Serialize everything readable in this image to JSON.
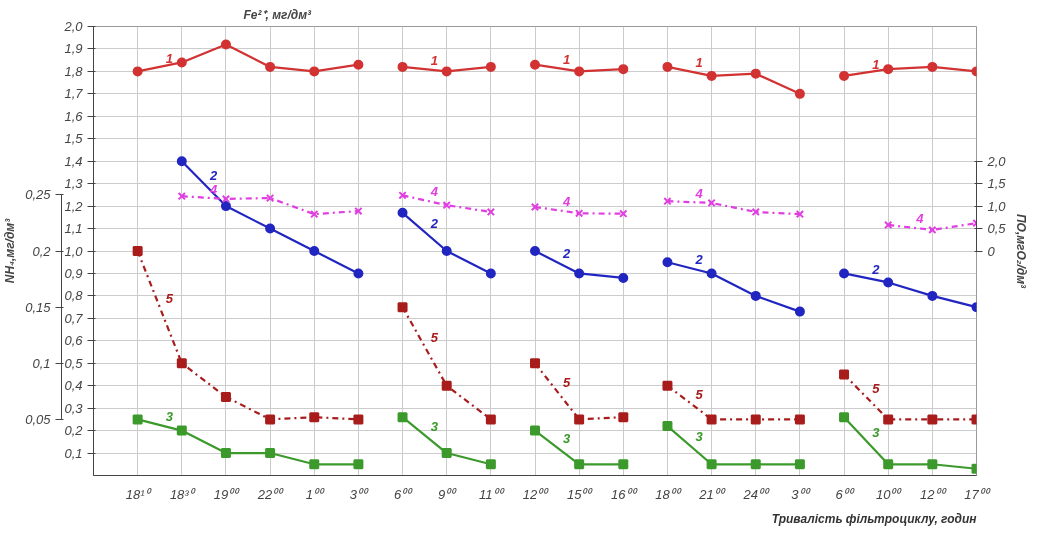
{
  "chart_data": {
    "type": "line",
    "ylabel": "Fe²⁺, мг/дм³",
    "y3label": "NH₄,мг/дм³",
    "y2label": "ПО,мгО₂/дм³",
    "xlabel": "Тривалість фільтроциклу, годин",
    "categories": [
      "18¹⁰",
      "18³⁰",
      "19⁰⁰",
      "22⁰⁰",
      "1⁰⁰",
      "3⁰⁰",
      "6⁰⁰",
      "9⁰⁰",
      "11⁰⁰",
      "12⁰⁰",
      "15⁰⁰",
      "16⁰⁰",
      "18⁰⁰",
      "21⁰⁰",
      "24⁰⁰",
      "3⁰⁰",
      "6⁰⁰",
      "10⁰⁰",
      "12⁰⁰",
      "17⁰⁰"
    ],
    "ylim": [
      0,
      2.0
    ],
    "yticks": [
      {
        "value": 0.1,
        "label": "0,1"
      },
      {
        "value": 0.2,
        "label": "0,2"
      },
      {
        "value": 0.3,
        "label": "0,3"
      },
      {
        "value": 0.4,
        "label": "0,4"
      },
      {
        "value": 0.5,
        "label": "0,5"
      },
      {
        "value": 0.6,
        "label": "0,6"
      },
      {
        "value": 0.7,
        "label": "0,7"
      },
      {
        "value": 0.8,
        "label": "0,8"
      },
      {
        "value": 0.9,
        "label": "0,9"
      },
      {
        "value": 1.0,
        "label": "1,0"
      },
      {
        "value": 1.1,
        "label": "1,1"
      },
      {
        "value": 1.2,
        "label": "1,2"
      },
      {
        "value": 1.3,
        "label": "1,3"
      },
      {
        "value": 1.4,
        "label": "1,4"
      },
      {
        "value": 1.5,
        "label": "1,5"
      },
      {
        "value": 1.6,
        "label": "1,6"
      },
      {
        "value": 1.7,
        "label": "1,7"
      },
      {
        "value": 1.8,
        "label": "1,8"
      },
      {
        "value": 1.9,
        "label": "1,9"
      },
      {
        "value": 2.0,
        "label": "2,0"
      }
    ],
    "y2lim": [
      -5,
      5
    ],
    "y2ticks": [
      {
        "value": 0,
        "label": "0"
      },
      {
        "value": 0.5,
        "label": "0,5"
      },
      {
        "value": 1.0,
        "label": "1,0"
      },
      {
        "value": 1.5,
        "label": "1,5"
      },
      {
        "value": 2.0,
        "label": "2,0"
      }
    ],
    "y3lim": [
      0,
      0.4
    ],
    "y3ticks": [
      {
        "value": 0.05,
        "label": "0,05"
      },
      {
        "value": 0.1,
        "label": "0,1"
      },
      {
        "value": 0.15,
        "label": "0,15"
      },
      {
        "value": 0.2,
        "label": "0,2"
      },
      {
        "value": 0.25,
        "label": "0,25"
      }
    ],
    "grid": true,
    "series": [
      {
        "name": "1",
        "color": "#d23232",
        "marker": "circle",
        "line_style": "solid",
        "values": [
          1.8,
          1.84,
          1.92,
          1.82,
          1.8,
          1.83,
          null,
          null,
          null,
          null,
          null,
          null,
          null,
          null,
          null,
          null,
          null,
          null,
          null,
          null
        ]
      },
      {
        "name": "1",
        "color": "#d23232",
        "marker": "circle",
        "line_style": "solid",
        "values": [
          null,
          null,
          null,
          null,
          null,
          null,
          1.82,
          1.8,
          1.82,
          null,
          null,
          null,
          null,
          null,
          null,
          null,
          null,
          null,
          null,
          null
        ]
      },
      {
        "name": "1",
        "color": "#d23232",
        "marker": "circle",
        "line_style": "solid",
        "values": [
          null,
          null,
          null,
          null,
          null,
          null,
          null,
          null,
          null,
          1.83,
          1.8,
          1.81,
          null,
          null,
          null,
          null,
          null,
          null,
          null,
          null
        ]
      },
      {
        "name": "1",
        "color": "#d23232",
        "marker": "circle",
        "line_style": "solid",
        "values": [
          null,
          null,
          null,
          null,
          null,
          null,
          null,
          null,
          null,
          null,
          null,
          null,
          1.82,
          1.78,
          1.79,
          1.7,
          null,
          null,
          null,
          null
        ]
      },
      {
        "name": "1",
        "color": "#d23232",
        "marker": "circle",
        "line_style": "solid",
        "values": [
          null,
          null,
          null,
          null,
          null,
          null,
          null,
          null,
          null,
          null,
          null,
          null,
          null,
          null,
          null,
          null,
          1.78,
          1.81,
          1.82,
          1.8
        ]
      },
      {
        "name": "2",
        "color": "#2226c0",
        "marker": "circle",
        "line_style": "solid",
        "values": [
          null,
          1.4,
          1.2,
          1.1,
          1.0,
          0.9,
          null,
          null,
          null,
          null,
          null,
          null,
          null,
          null,
          null,
          null,
          null,
          null,
          null,
          null
        ]
      },
      {
        "name": "2",
        "color": "#2226c0",
        "marker": "circle",
        "line_style": "solid",
        "values": [
          null,
          null,
          null,
          null,
          null,
          null,
          1.17,
          1.0,
          0.9,
          null,
          null,
          null,
          null,
          null,
          null,
          null,
          null,
          null,
          null,
          null
        ]
      },
      {
        "name": "2",
        "color": "#2226c0",
        "marker": "circle",
        "line_style": "solid",
        "values": [
          null,
          null,
          null,
          null,
          null,
          null,
          null,
          null,
          null,
          1.0,
          0.9,
          0.88,
          null,
          null,
          null,
          null,
          null,
          null,
          null,
          null
        ]
      },
      {
        "name": "2",
        "color": "#2226c0",
        "marker": "circle",
        "line_style": "solid",
        "values": [
          null,
          null,
          null,
          null,
          null,
          null,
          null,
          null,
          null,
          null,
          null,
          null,
          0.95,
          0.9,
          0.8,
          0.73,
          null,
          null,
          null,
          null
        ]
      },
      {
        "name": "2",
        "color": "#2226c0",
        "marker": "circle",
        "line_style": "solid",
        "values": [
          null,
          null,
          null,
          null,
          null,
          null,
          null,
          null,
          null,
          null,
          null,
          null,
          null,
          null,
          null,
          null,
          0.9,
          0.86,
          0.8,
          0.75
        ]
      },
      {
        "name": "3",
        "color": "#3c9a2c",
        "marker": "square",
        "line_style": "solid",
        "axis": "y3",
        "values": [
          0.05,
          0.04,
          0.02,
          0.02,
          0.01,
          0.01,
          null,
          null,
          null,
          null,
          null,
          null,
          null,
          null,
          null,
          null,
          null,
          null,
          null,
          null
        ]
      },
      {
        "name": "3",
        "color": "#3c9a2c",
        "marker": "square",
        "line_style": "solid",
        "axis": "y3",
        "values": [
          null,
          null,
          null,
          null,
          null,
          null,
          0.052,
          0.02,
          0.01,
          null,
          null,
          null,
          null,
          null,
          null,
          null,
          null,
          null,
          null,
          null
        ]
      },
      {
        "name": "3",
        "color": "#3c9a2c",
        "marker": "square",
        "line_style": "solid",
        "axis": "y3",
        "values": [
          null,
          null,
          null,
          null,
          null,
          null,
          null,
          null,
          null,
          0.04,
          0.01,
          0.01,
          null,
          null,
          null,
          null,
          null,
          null,
          null,
          null
        ]
      },
      {
        "name": "3",
        "color": "#3c9a2c",
        "marker": "square",
        "line_style": "solid",
        "axis": "y3",
        "values": [
          null,
          null,
          null,
          null,
          null,
          null,
          null,
          null,
          null,
          null,
          null,
          null,
          0.044,
          0.01,
          0.01,
          0.01,
          null,
          null,
          null,
          null
        ]
      },
      {
        "name": "3",
        "color": "#3c9a2c",
        "marker": "square",
        "line_style": "solid",
        "axis": "y3",
        "values": [
          null,
          null,
          null,
          null,
          null,
          null,
          null,
          null,
          null,
          null,
          null,
          null,
          null,
          null,
          null,
          null,
          0.052,
          0.01,
          0.01,
          0.006
        ]
      },
      {
        "name": "4",
        "color": "#e03ee0",
        "marker": "cross",
        "line_style": "dashdot",
        "axis": "y2",
        "values": [
          null,
          1.22,
          1.16,
          1.18,
          0.82,
          0.89,
          null,
          null,
          null,
          null,
          null,
          null,
          null,
          null,
          null,
          null,
          null,
          null,
          null,
          null
        ]
      },
      {
        "name": "4",
        "color": "#e03ee0",
        "marker": "cross",
        "line_style": "dashdot",
        "axis": "y2",
        "values": [
          null,
          null,
          null,
          null,
          null,
          null,
          1.24,
          1.02,
          0.87,
          null,
          null,
          null,
          null,
          null,
          null,
          null,
          null,
          null,
          null,
          null
        ]
      },
      {
        "name": "4",
        "color": "#e03ee0",
        "marker": "cross",
        "line_style": "dashdot",
        "axis": "y2",
        "values": [
          null,
          null,
          null,
          null,
          null,
          null,
          null,
          null,
          null,
          0.98,
          0.84,
          0.83,
          null,
          null,
          null,
          null,
          null,
          null,
          null,
          null
        ]
      },
      {
        "name": "4",
        "color": "#e03ee0",
        "marker": "cross",
        "line_style": "dashdot",
        "axis": "y2",
        "values": [
          null,
          null,
          null,
          null,
          null,
          null,
          null,
          null,
          null,
          null,
          null,
          null,
          1.11,
          1.07,
          0.87,
          0.82,
          null,
          null,
          null,
          null
        ]
      },
      {
        "name": "4",
        "color": "#e03ee0",
        "marker": "cross",
        "line_style": "dashdot",
        "axis": "y2",
        "values": [
          null,
          null,
          null,
          null,
          null,
          null,
          null,
          null,
          null,
          null,
          null,
          null,
          null,
          null,
          null,
          null,
          null,
          0.58,
          0.47,
          0.62
        ]
      },
      {
        "name": "5",
        "color": "#a81c1c",
        "marker": "square",
        "line_style": "dashdot",
        "axis": "y3",
        "values": [
          0.2,
          0.1,
          0.07,
          0.05,
          0.052,
          0.05,
          null,
          null,
          null,
          null,
          null,
          null,
          null,
          null,
          null,
          null,
          null,
          null,
          null,
          null
        ]
      },
      {
        "name": "5",
        "color": "#a81c1c",
        "marker": "square",
        "line_style": "dashdot",
        "axis": "y3",
        "values": [
          null,
          null,
          null,
          null,
          null,
          null,
          0.15,
          0.08,
          0.05,
          null,
          null,
          null,
          null,
          null,
          null,
          null,
          null,
          null,
          null,
          null
        ]
      },
      {
        "name": "5",
        "color": "#a81c1c",
        "marker": "square",
        "line_style": "dashdot",
        "axis": "y3",
        "values": [
          null,
          null,
          null,
          null,
          null,
          null,
          null,
          null,
          null,
          0.1,
          0.05,
          0.052,
          null,
          null,
          null,
          null,
          null,
          null,
          null,
          null
        ]
      },
      {
        "name": "5",
        "color": "#a81c1c",
        "marker": "square",
        "line_style": "dashdot",
        "axis": "y3",
        "values": [
          null,
          null,
          null,
          null,
          null,
          null,
          null,
          null,
          null,
          null,
          null,
          null,
          0.08,
          0.05,
          0.05,
          0.05,
          null,
          null,
          null,
          null
        ]
      },
      {
        "name": "5",
        "color": "#a81c1c",
        "marker": "square",
        "line_style": "dashdot",
        "axis": "y3",
        "values": [
          null,
          null,
          null,
          null,
          null,
          null,
          null,
          null,
          null,
          null,
          null,
          null,
          null,
          null,
          null,
          null,
          0.09,
          0.05,
          0.05,
          0.05
        ]
      }
    ]
  }
}
